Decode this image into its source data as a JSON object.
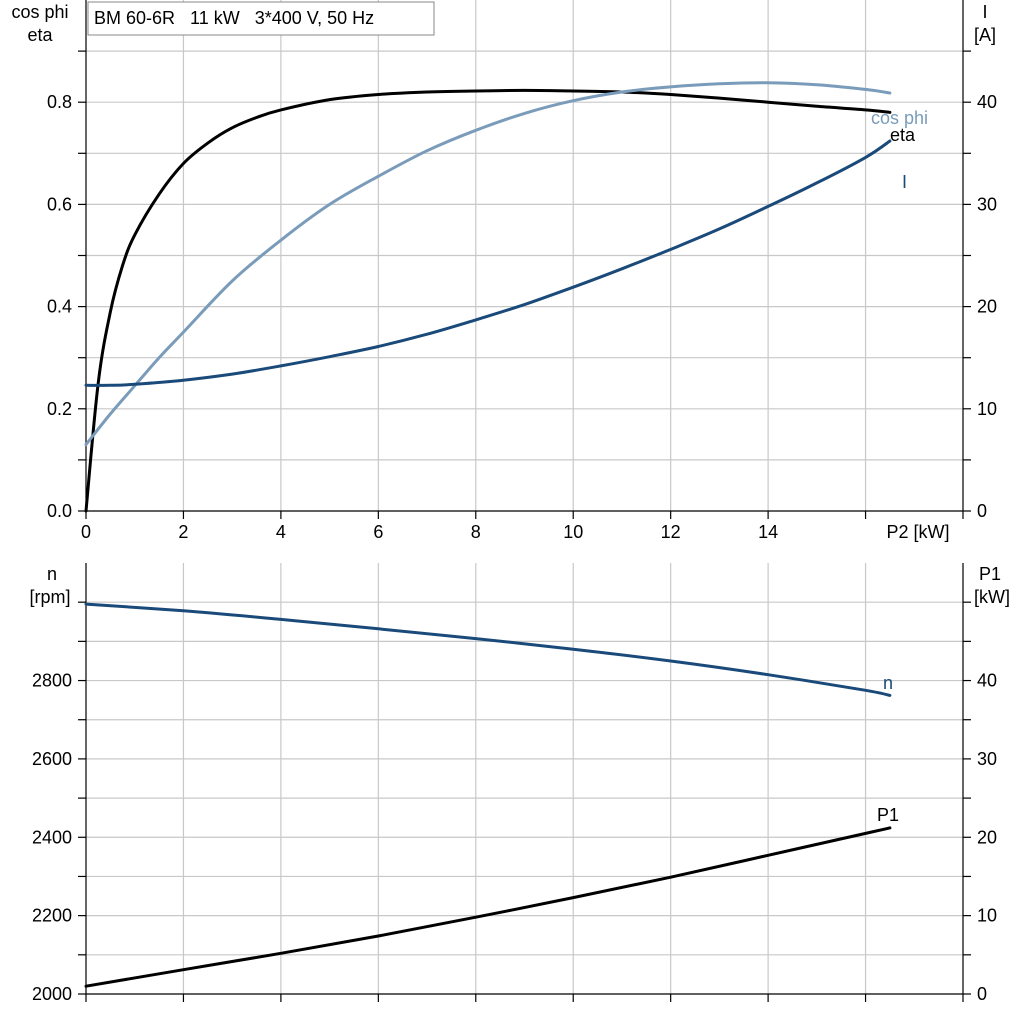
{
  "chart_data": [
    {
      "type": "line",
      "title": "BM 60-6R   11 kW   3*400 V, 50 Hz",
      "xlabel": "P2 [kW]",
      "ylabel_left": [
        "cos phi",
        "eta"
      ],
      "ylabel_right": [
        "I",
        "[A]"
      ],
      "xlim": [
        0,
        18
      ],
      "ylim_left": [
        0,
        1.0
      ],
      "ylim_right": [
        0,
        50
      ],
      "x_ticks": [
        0,
        2,
        4,
        6,
        8,
        10,
        12,
        14
      ],
      "y_ticks_left": [
        0.0,
        0.2,
        0.4,
        0.6,
        0.8
      ],
      "y_ticks_left_labels": [
        "0.0",
        "0.2",
        "0.4",
        "0.6",
        "0.8"
      ],
      "y_ticks_right": [
        0,
        10,
        20,
        30,
        40
      ],
      "grid": true,
      "series": [
        {
          "name": "eta",
          "axis": "left",
          "color": "#000000",
          "x": [
            0,
            0.25,
            0.5,
            0.75,
            1.0,
            1.5,
            2.0,
            2.5,
            3.0,
            3.5,
            4.0,
            5.0,
            6.0,
            7.0,
            8.0,
            9.0,
            10.0,
            11.0,
            12.0,
            13.0,
            14.0,
            15.0,
            16.0,
            16.5
          ],
          "y": [
            0.0,
            0.25,
            0.39,
            0.48,
            0.54,
            0.62,
            0.68,
            0.72,
            0.75,
            0.77,
            0.785,
            0.805,
            0.815,
            0.82,
            0.822,
            0.823,
            0.822,
            0.82,
            0.815,
            0.808,
            0.8,
            0.792,
            0.785,
            0.78
          ]
        },
        {
          "name": "cos phi",
          "axis": "left",
          "color": "#7a9cba",
          "x": [
            0,
            0.5,
            1.0,
            1.5,
            2.0,
            3.0,
            4.0,
            5.0,
            6.0,
            7.0,
            8.0,
            9.0,
            10.0,
            11.0,
            12.0,
            13.0,
            14.0,
            15.0,
            16.0,
            16.5
          ],
          "y": [
            0.13,
            0.19,
            0.245,
            0.3,
            0.35,
            0.45,
            0.53,
            0.6,
            0.655,
            0.705,
            0.745,
            0.778,
            0.803,
            0.82,
            0.83,
            0.836,
            0.838,
            0.834,
            0.825,
            0.818
          ]
        },
        {
          "name": "I",
          "axis": "right",
          "color": "#1a4a7a",
          "x": [
            0,
            0.5,
            1.0,
            2.0,
            3.0,
            4.0,
            5.0,
            6.0,
            7.0,
            8.0,
            9.0,
            10.0,
            11.0,
            12.0,
            13.0,
            14.0,
            15.0,
            16.0,
            16.5
          ],
          "y": [
            12.3,
            12.3,
            12.4,
            12.8,
            13.4,
            14.2,
            15.1,
            16.1,
            17.3,
            18.7,
            20.2,
            21.9,
            23.7,
            25.6,
            27.6,
            29.8,
            32.1,
            34.6,
            36.2
          ]
        }
      ]
    },
    {
      "type": "line",
      "title": "",
      "xlabel": "",
      "ylabel_left": [
        "n",
        "[rpm]"
      ],
      "ylabel_right": [
        "P1",
        "[kW]"
      ],
      "xlim": [
        0,
        18
      ],
      "ylim_left": [
        2000,
        3100
      ],
      "ylim_right": [
        0,
        55
      ],
      "y_ticks_left": [
        2000,
        2200,
        2400,
        2600,
        2800
      ],
      "y_ticks_right": [
        0,
        10,
        20,
        30,
        40
      ],
      "grid": true,
      "series": [
        {
          "name": "n",
          "axis": "left",
          "color": "#1a4a7a",
          "x": [
            0,
            2,
            4,
            6,
            8,
            10,
            12,
            14,
            16,
            16.5
          ],
          "y": [
            2995,
            2978,
            2956,
            2932,
            2907,
            2880,
            2850,
            2815,
            2775,
            2762
          ]
        },
        {
          "name": "P1",
          "axis": "right",
          "color": "#000000",
          "x": [
            0,
            2,
            4,
            6,
            8,
            10,
            12,
            14,
            16,
            16.5
          ],
          "y": [
            1.0,
            3.1,
            5.2,
            7.4,
            9.8,
            12.3,
            14.9,
            17.7,
            20.5,
            21.2
          ]
        }
      ]
    }
  ]
}
